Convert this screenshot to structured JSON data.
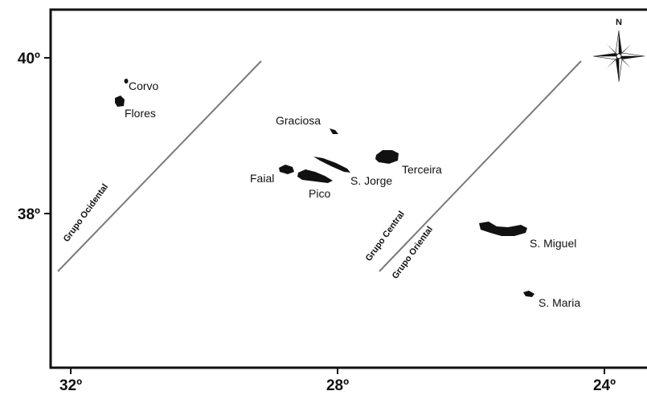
{
  "axes": {
    "y_ticks": [
      "40º",
      "38º"
    ],
    "x_ticks": [
      "32º",
      "28º",
      "24º"
    ]
  },
  "islands": [
    {
      "name": "Corvo"
    },
    {
      "name": "Flores"
    },
    {
      "name": "Graciosa"
    },
    {
      "name": "Faial"
    },
    {
      "name": "Pico"
    },
    {
      "name": "S. Jorge"
    },
    {
      "name": "Terceira"
    },
    {
      "name": "S. Miguel"
    },
    {
      "name": "S. Maria"
    }
  ],
  "groups": [
    {
      "name": "Grupo Ocidental"
    },
    {
      "name": "Grupo Central"
    },
    {
      "name": "Grupo Oriental"
    }
  ],
  "compass": {
    "north_label": "N",
    "icon": "compass-rose-icon"
  },
  "colors": {
    "land": "#111111",
    "frame": "#111111",
    "divider": "#7a7a7a"
  }
}
